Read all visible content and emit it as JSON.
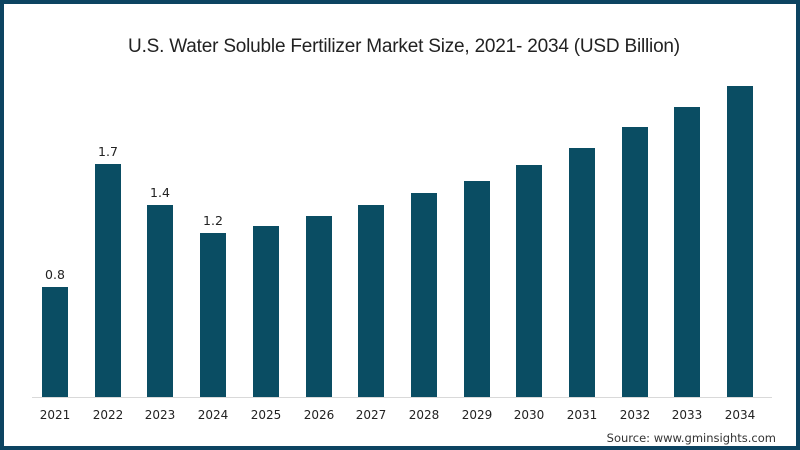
{
  "chart_data": {
    "type": "bar",
    "title": "U.S. Water Soluble Fertilizer Market Size, 2021- 2034 (USD Billion)",
    "xlabel": "",
    "ylabel": "",
    "categories": [
      "2021",
      "2022",
      "2023",
      "2024",
      "2025",
      "2026",
      "2027",
      "2028",
      "2029",
      "2030",
      "2031",
      "2032",
      "2033",
      "2034"
    ],
    "values": [
      0.8,
      1.7,
      1.4,
      1.2,
      1.25,
      1.32,
      1.4,
      1.49,
      1.58,
      1.69,
      1.82,
      1.97,
      2.12,
      2.27
    ],
    "data_labels": [
      "0.8",
      "1.7",
      "1.4",
      "1.2",
      "",
      "",
      "",
      "",
      "",
      "",
      "",
      "",
      "",
      ""
    ],
    "ylim": [
      0,
      2.4
    ],
    "grid": false,
    "legend": null,
    "source": "Source: www.gminsights.com",
    "colors": {
      "bar": "#0a4d63",
      "border": "#0d4461"
    }
  }
}
